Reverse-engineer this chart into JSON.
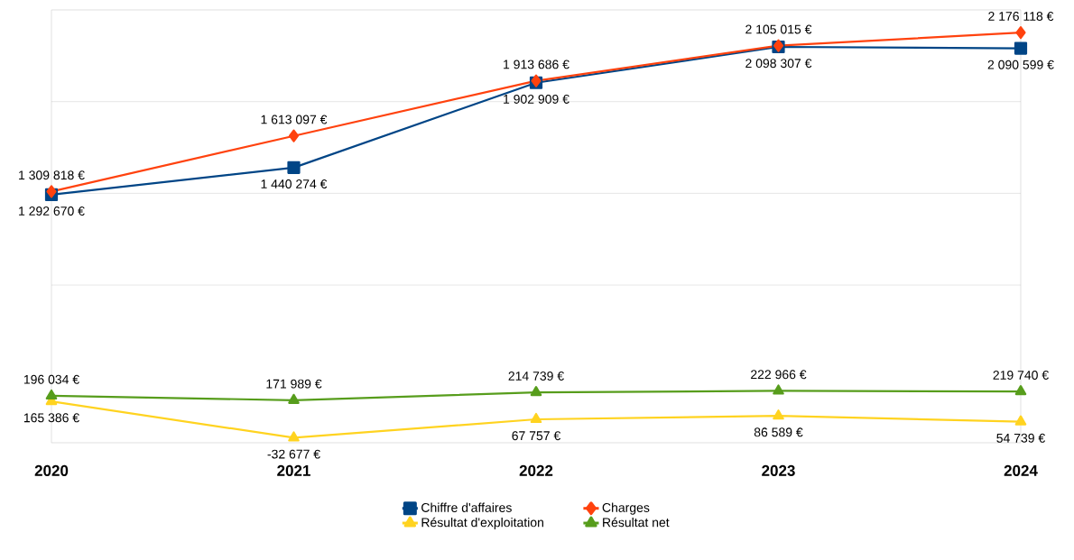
{
  "chart_data": {
    "type": "line",
    "categories": [
      "2020",
      "2021",
      "2022",
      "2023",
      "2024"
    ],
    "series": [
      {
        "name": "Chiffre d'affaires",
        "color": "#004586",
        "marker": "square",
        "values": [
          1292670,
          1440274,
          1902909,
          2098307,
          2090599
        ],
        "value_labels": [
          "1 292 670 €",
          "1 440 274 €",
          "1 902 909 €",
          "2 098 307 €",
          "2 090 599 €"
        ]
      },
      {
        "name": "Charges",
        "color": "#ff420e",
        "marker": "diamond",
        "values": [
          1309818,
          1613097,
          1913686,
          2105015,
          2176118
        ],
        "value_labels": [
          "1 309 818 €",
          "1 613 097 €",
          "1 913 686 €",
          "2 105 015 €",
          "2 176 118 €"
        ]
      },
      {
        "name": "Résultat d'exploitation",
        "color": "#ffd320",
        "marker": "triangle",
        "values": [
          165386,
          -32677,
          67757,
          86589,
          54739
        ],
        "value_labels": [
          "165 386 €",
          "-32 677 €",
          "67 757 €",
          "86 589 €",
          "54 739 €"
        ]
      },
      {
        "name": "Résultat net",
        "color": "#579d1c",
        "marker": "triangle",
        "values": [
          196034,
          171989,
          214739,
          222966,
          219740
        ],
        "value_labels": [
          "196 034 €",
          "171 989 €",
          "214 739 €",
          "222 966 €",
          "219 740 €"
        ]
      }
    ],
    "ylim": [
      -60000,
      2300000
    ],
    "yticks": [
      {
        "value": 800000,
        "label": null
      },
      {
        "value": 1300000,
        "label": null
      },
      {
        "value": 1800000,
        "label": null
      }
    ],
    "grid": "y",
    "legend": "bottom",
    "line_style": "solid",
    "tick_labels": "x"
  }
}
